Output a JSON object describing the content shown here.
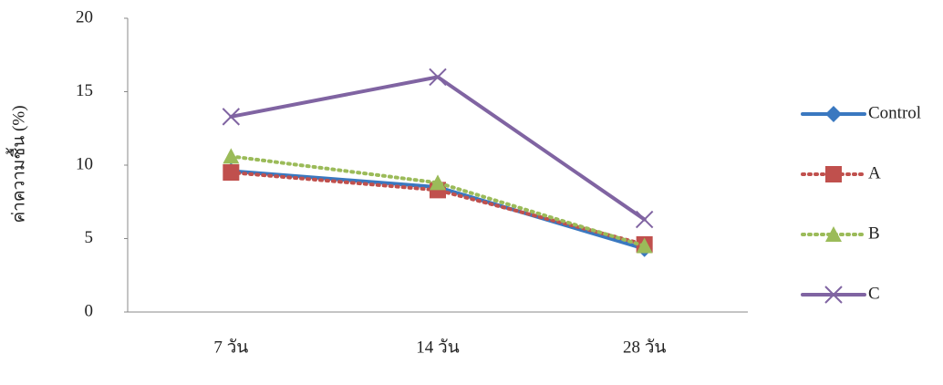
{
  "chart_data": {
    "type": "line",
    "ylabel": "ค่าความชื้น (%)",
    "categories": [
      "7 วัน",
      "14 วัน",
      "28 วัน"
    ],
    "series": [
      {
        "name": "Control",
        "color": "#3a78c0",
        "marker": "diamond",
        "dash": "solid",
        "values": [
          9.6,
          8.5,
          4.3
        ]
      },
      {
        "name": "A",
        "color": "#c0504d",
        "marker": "square",
        "dash": "dot",
        "values": [
          9.5,
          8.3,
          4.6
        ]
      },
      {
        "name": "B",
        "color": "#9bbb59",
        "marker": "triangle",
        "dash": "dot",
        "values": [
          10.6,
          8.8,
          4.5
        ]
      },
      {
        "name": "C",
        "color": "#8064a2",
        "marker": "x",
        "dash": "solid",
        "values": [
          13.3,
          16.0,
          6.3
        ]
      }
    ],
    "ylim": [
      0,
      20
    ],
    "yticks": [
      0,
      5,
      10,
      15,
      20
    ],
    "grid": false,
    "legend": "right"
  }
}
